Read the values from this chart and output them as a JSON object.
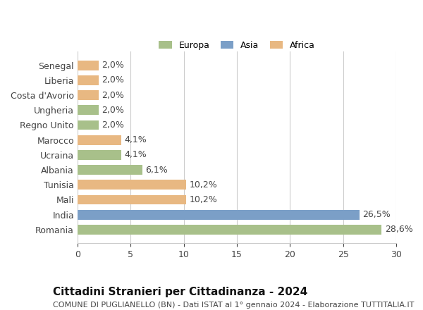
{
  "categories": [
    "Romania",
    "India",
    "Mali",
    "Tunisia",
    "Albania",
    "Ucraina",
    "Marocco",
    "Regno Unito",
    "Ungheria",
    "Costa d'Avorio",
    "Liberia",
    "Senegal"
  ],
  "values": [
    28.6,
    26.5,
    10.2,
    10.2,
    6.1,
    4.1,
    4.1,
    2.0,
    2.0,
    2.0,
    2.0,
    2.0
  ],
  "labels": [
    "28,6%",
    "26,5%",
    "10,2%",
    "10,2%",
    "6,1%",
    "4,1%",
    "4,1%",
    "2,0%",
    "2,0%",
    "2,0%",
    "2,0%",
    "2,0%"
  ],
  "continents": [
    "Europa",
    "Asia",
    "Africa",
    "Africa",
    "Europa",
    "Europa",
    "Africa",
    "Europa",
    "Europa",
    "Africa",
    "Africa",
    "Africa"
  ],
  "colors": {
    "Europa": "#a8c08a",
    "Asia": "#7b9fc7",
    "Africa": "#e8b882"
  },
  "legend_order": [
    "Europa",
    "Asia",
    "Africa"
  ],
  "title": "Cittadini Stranieri per Cittadinanza - 2024",
  "subtitle": "COMUNE DI PUGLIANELLO (BN) - Dati ISTAT al 1° gennaio 2024 - Elaborazione TUTTITALIA.IT",
  "xlim": [
    0,
    30
  ],
  "xticks": [
    0,
    5,
    10,
    15,
    20,
    25,
    30
  ],
  "background_color": "#ffffff",
  "grid_color": "#cccccc",
  "bar_height": 0.65,
  "label_fontsize": 9,
  "tick_fontsize": 9,
  "title_fontsize": 11,
  "subtitle_fontsize": 8
}
